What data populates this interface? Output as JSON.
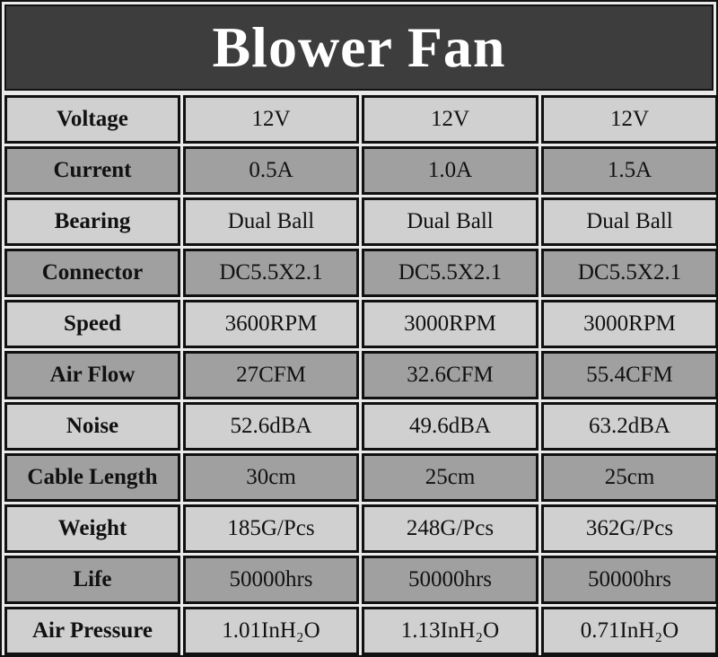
{
  "title": "Blower Fan",
  "colors": {
    "title_bg": "#3d3d3d",
    "row_light": "#d0d0d0",
    "row_dark": "#a0a0a0",
    "border": "#111111"
  },
  "rows": [
    {
      "label": "Voltage",
      "values": [
        "12V",
        "12V",
        "12V"
      ]
    },
    {
      "label": "Current",
      "values": [
        "0.5A",
        "1.0A",
        "1.5A"
      ]
    },
    {
      "label": "Bearing",
      "values": [
        "Dual Ball",
        "Dual Ball",
        "Dual Ball"
      ]
    },
    {
      "label": "Connector",
      "values": [
        "DC5.5X2.1",
        "DC5.5X2.1",
        "DC5.5X2.1"
      ]
    },
    {
      "label": "Speed",
      "values": [
        "3600RPM",
        "3000RPM",
        "3000RPM"
      ]
    },
    {
      "label": "Air Flow",
      "values": [
        "27CFM",
        "32.6CFM",
        "55.4CFM"
      ]
    },
    {
      "label": "Noise",
      "values": [
        "52.6dBA",
        "49.6dBA",
        "63.2dBA"
      ]
    },
    {
      "label": "Cable Length",
      "values": [
        "30cm",
        "25cm",
        "25cm"
      ]
    },
    {
      "label": "Weight",
      "values": [
        "185G/Pcs",
        "248G/Pcs",
        "362G/Pcs"
      ]
    },
    {
      "label": "Life",
      "values": [
        "50000hrs",
        "50000hrs",
        "50000hrs"
      ]
    },
    {
      "label": "Air Pressure",
      "values": [
        "1.01InH₂O",
        "1.13InH₂O",
        "0.71InH₂O"
      ]
    }
  ]
}
